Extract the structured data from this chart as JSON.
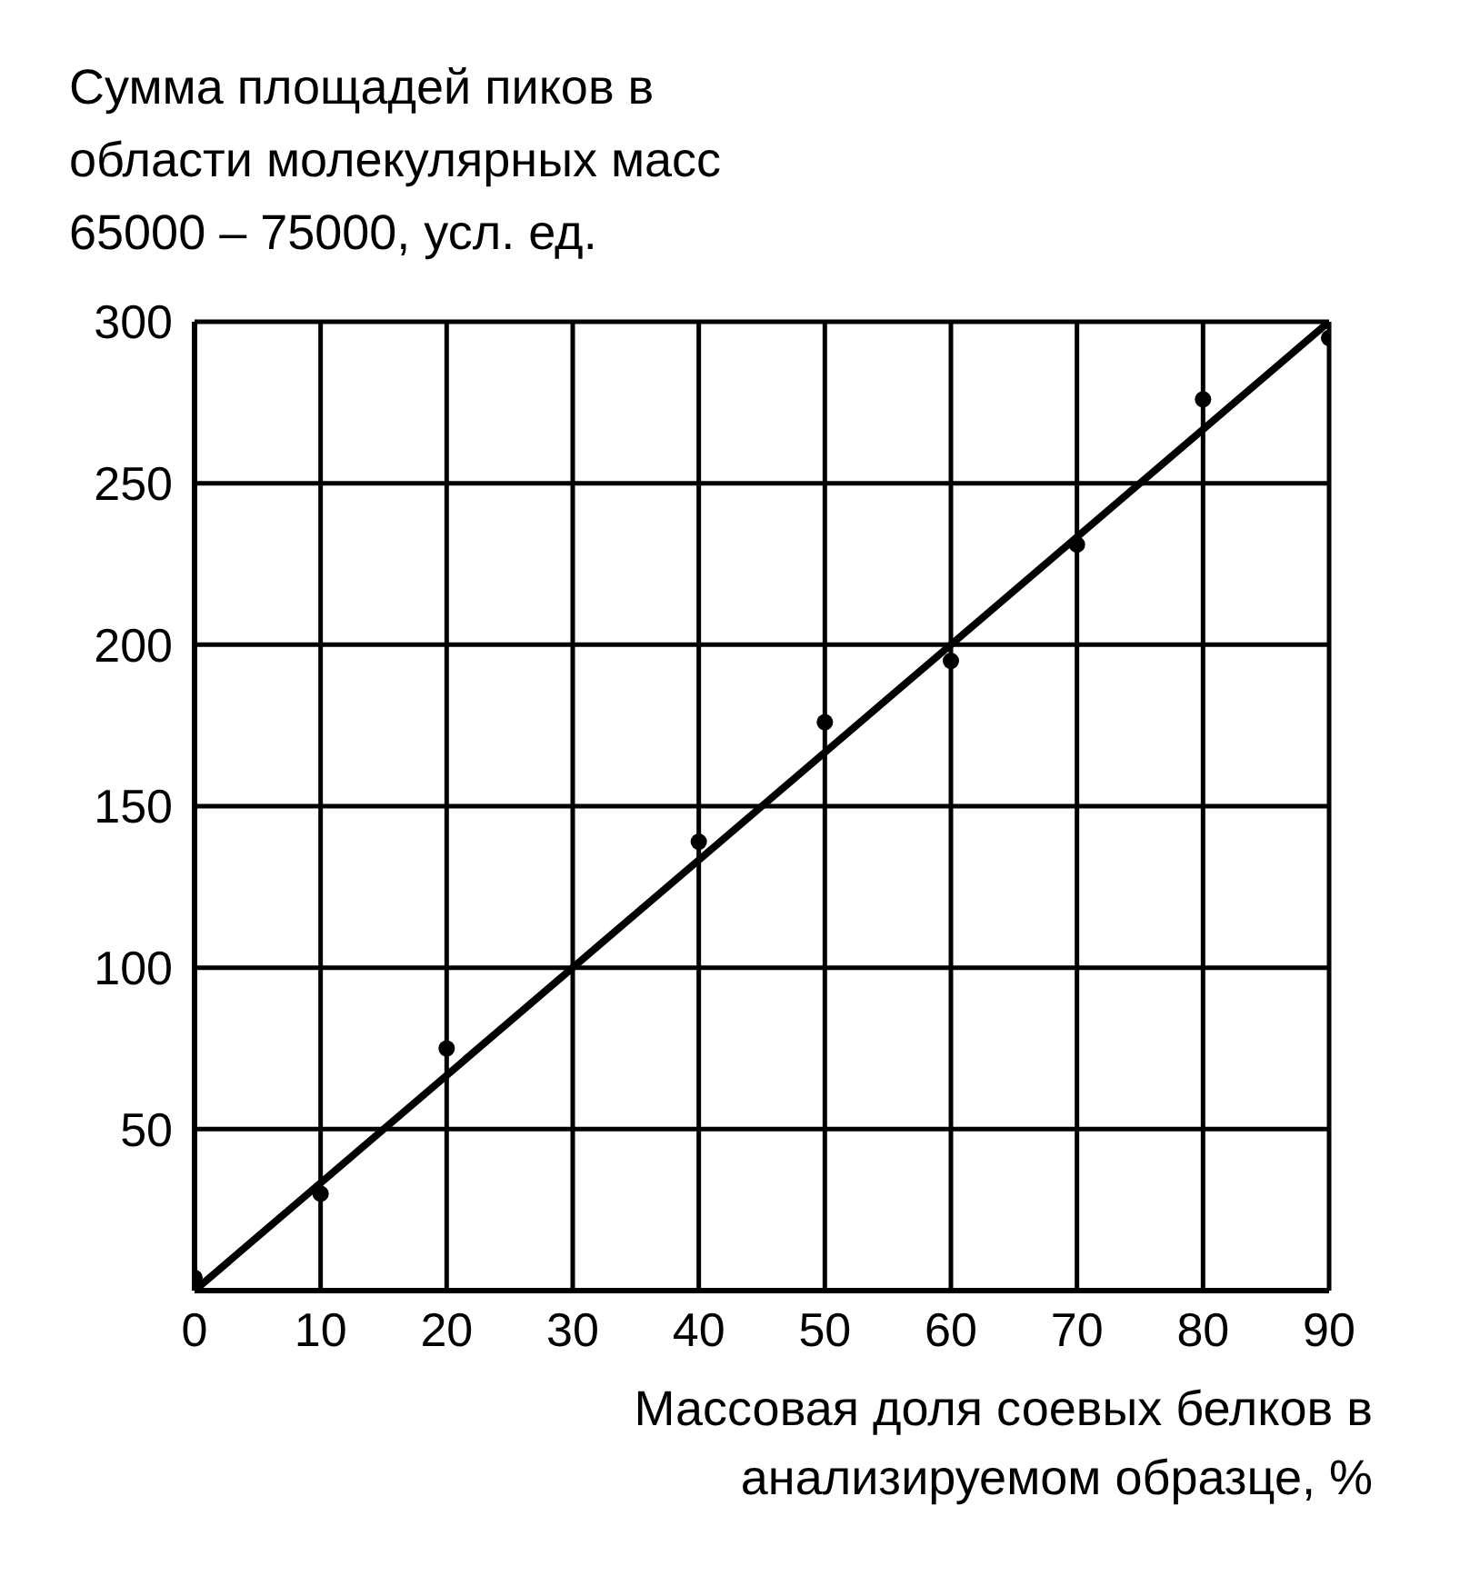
{
  "chart_data": {
    "type": "scatter",
    "ylabel": "Сумма площадей пиков в области молекулярных масс 65000 – 75000, усл. ед.",
    "xlabel": "Массовая доля соевых белков в анализируемом образце, %",
    "series": [
      {
        "color": "#000000",
        "marker": "circle",
        "x": [
          0,
          10,
          20,
          40,
          50,
          60,
          70,
          80,
          90
        ],
        "values": [
          4,
          30,
          75,
          139,
          176,
          195,
          231,
          276,
          295
        ]
      },
      {
        "type": "line",
        "color": "#000000",
        "marker": "none",
        "x": [
          0,
          90
        ],
        "values": [
          0,
          300
        ]
      }
    ],
    "xlim": [
      0,
      90
    ],
    "xticks": [
      0,
      10,
      20,
      30,
      40,
      50,
      60,
      70,
      80,
      90
    ],
    "ylim": [
      0,
      300
    ],
    "yticks": [
      {
        "value": 0,
        "label": null
      },
      50,
      100,
      150,
      200,
      250,
      300
    ],
    "grid": true
  }
}
